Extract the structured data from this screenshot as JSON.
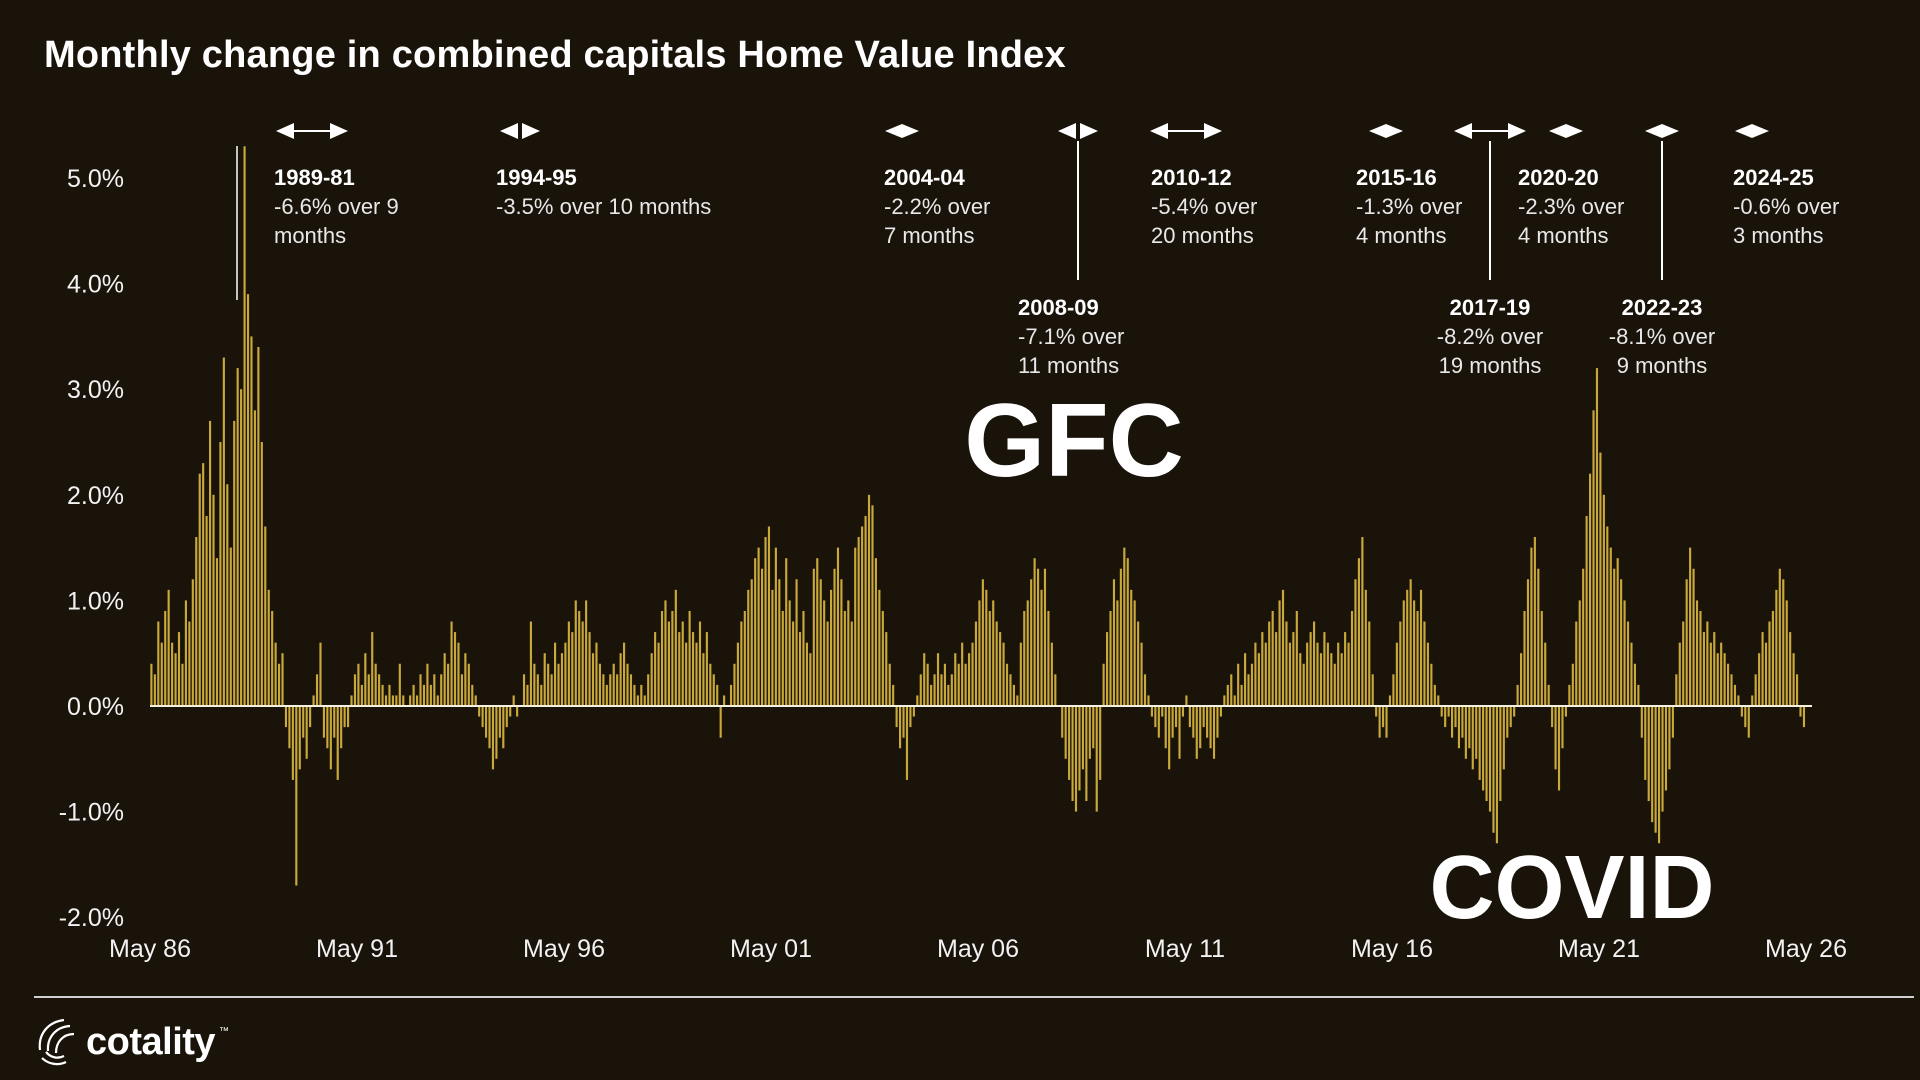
{
  "chart_data": {
    "type": "bar",
    "title": "Monthly change in combined capitals Home Value Index",
    "ylim": [
      -2.0,
      5.5
    ],
    "y_ticks": [
      "5.0%",
      "4.0%",
      "3.0%",
      "2.0%",
      "1.0%",
      "0.0%",
      "-1.0%",
      "-2.0%"
    ],
    "y_tick_values": [
      5.0,
      4.0,
      3.0,
      2.0,
      1.0,
      0.0,
      -1.0,
      -2.0
    ],
    "x_ticks": [
      "May 86",
      "May 91",
      "May 96",
      "May 01",
      "May 06",
      "May 11",
      "May 16",
      "May 21",
      "May 26"
    ],
    "x_range": [
      "May 86",
      "May 26"
    ],
    "grid": false,
    "series_color": "#c9a93a",
    "series": [
      {
        "values_by_year": [
          {
            "year": "1986-87",
            "values": [
              0.4,
              0.3,
              0.8,
              0.6,
              0.9,
              1.1,
              0.6,
              0.5,
              0.7,
              0.4,
              1.0,
              0.8
            ]
          },
          {
            "year": "1987-88",
            "values": [
              1.2,
              1.6,
              2.2,
              2.3,
              1.8,
              2.7,
              2.0,
              1.4,
              2.5,
              3.3,
              2.1,
              1.5
            ]
          },
          {
            "year": "1988-89",
            "values": [
              2.7,
              3.2,
              3.0,
              5.3,
              3.9,
              3.5,
              2.8,
              3.4,
              2.5,
              1.7,
              1.1,
              0.9
            ]
          },
          {
            "year": "1989-90",
            "values": [
              0.6,
              0.4,
              0.5,
              -0.2,
              -0.4,
              -0.7,
              -1.7,
              -0.6,
              -0.3,
              -0.5,
              -0.2,
              0.1
            ]
          },
          {
            "year": "1990-91",
            "values": [
              0.3,
              0.6,
              -0.3,
              -0.4,
              -0.6,
              -0.3,
              -0.7,
              -0.4,
              -0.2,
              -0.2,
              0.1,
              0.3
            ]
          },
          {
            "year": "1991-92",
            "values": [
              0.4,
              0.2,
              0.5,
              0.3,
              0.7,
              0.4,
              0.3,
              0.2,
              0.1,
              0.2,
              0.1,
              0.1
            ]
          },
          {
            "year": "1992-93",
            "values": [
              0.4,
              0.1,
              0.0,
              0.1,
              0.2,
              0.1,
              0.3,
              0.2,
              0.4,
              0.2,
              0.3,
              0.1
            ]
          },
          {
            "year": "1993-94",
            "values": [
              0.3,
              0.5,
              0.4,
              0.8,
              0.7,
              0.6,
              0.3,
              0.5,
              0.4,
              0.2,
              0.1,
              -0.1
            ]
          },
          {
            "year": "1994-95",
            "values": [
              -0.2,
              -0.3,
              -0.4,
              -0.6,
              -0.5,
              -0.3,
              -0.4,
              -0.2,
              -0.1,
              0.1,
              -0.1,
              0.0
            ]
          },
          {
            "year": "1995-96",
            "values": [
              0.3,
              0.2,
              0.8,
              0.4,
              0.3,
              0.2,
              0.5,
              0.4,
              0.3,
              0.6,
              0.4,
              0.5
            ]
          },
          {
            "year": "1996-97",
            "values": [
              0.6,
              0.8,
              0.7,
              1.0,
              0.9,
              0.8,
              1.0,
              0.7,
              0.5,
              0.6,
              0.4,
              0.3
            ]
          },
          {
            "year": "1997-98",
            "values": [
              0.2,
              0.3,
              0.4,
              0.3,
              0.5,
              0.6,
              0.4,
              0.3,
              0.2,
              0.1,
              0.2,
              0.1
            ]
          },
          {
            "year": "1998-99",
            "values": [
              0.3,
              0.5,
              0.7,
              0.6,
              0.9,
              1.0,
              0.8,
              0.9,
              1.1,
              0.7,
              0.8,
              0.6
            ]
          },
          {
            "year": "1999-00",
            "values": [
              0.9,
              0.7,
              0.6,
              0.8,
              0.5,
              0.7,
              0.4,
              0.3,
              0.2,
              -0.3,
              0.1,
              0.0
            ]
          },
          {
            "year": "2000-01",
            "values": [
              0.2,
              0.4,
              0.6,
              0.8,
              0.9,
              1.1,
              1.2,
              1.4,
              1.5,
              1.3,
              1.6,
              1.7
            ]
          },
          {
            "year": "2001-02",
            "values": [
              1.1,
              1.5,
              1.2,
              0.9,
              1.4,
              1.0,
              0.8,
              1.2,
              0.7,
              0.9,
              0.6,
              0.5
            ]
          },
          {
            "year": "2002-03",
            "values": [
              1.3,
              1.4,
              1.2,
              1.0,
              0.8,
              1.1,
              1.3,
              1.5,
              1.2,
              0.9,
              1.0,
              0.8
            ]
          },
          {
            "year": "2003-04",
            "values": [
              1.5,
              1.6,
              1.7,
              1.8,
              2.0,
              1.9,
              1.4,
              1.1,
              0.9,
              0.7,
              0.4,
              0.2
            ]
          },
          {
            "year": "2004-05",
            "values": [
              -0.2,
              -0.4,
              -0.3,
              -0.7,
              -0.2,
              -0.1,
              0.1,
              0.3,
              0.5,
              0.4,
              0.2,
              0.3
            ]
          },
          {
            "year": "2005-06",
            "values": [
              0.5,
              0.3,
              0.4,
              0.2,
              0.3,
              0.5,
              0.4,
              0.6,
              0.4,
              0.5,
              0.6,
              0.8
            ]
          },
          {
            "year": "2006-07",
            "values": [
              1.0,
              1.2,
              1.1,
              0.9,
              1.0,
              0.8,
              0.7,
              0.6,
              0.4,
              0.3,
              0.2,
              0.1
            ]
          },
          {
            "year": "2007-08",
            "values": [
              0.6,
              0.9,
              1.0,
              1.2,
              1.4,
              1.3,
              1.1,
              1.3,
              0.9,
              0.6,
              0.3,
              0.0
            ]
          },
          {
            "year": "2008-09",
            "values": [
              -0.3,
              -0.5,
              -0.7,
              -0.9,
              -1.0,
              -0.8,
              -0.6,
              -0.9,
              -0.5,
              -0.4,
              -1.0,
              -0.7
            ]
          },
          {
            "year": "2009-10",
            "values": [
              0.4,
              0.7,
              0.9,
              1.2,
              1.0,
              1.3,
              1.5,
              1.4,
              1.1,
              1.0,
              0.8,
              0.6
            ]
          },
          {
            "year": "2010-11",
            "values": [
              0.3,
              0.1,
              -0.1,
              -0.2,
              -0.3,
              -0.1,
              -0.4,
              -0.6,
              -0.3,
              -0.2,
              -0.5,
              -0.1
            ]
          },
          {
            "year": "2011-12",
            "values": [
              0.1,
              -0.2,
              -0.3,
              -0.5,
              -0.4,
              -0.2,
              -0.3,
              -0.4,
              -0.5,
              -0.3,
              -0.1,
              0.1
            ]
          },
          {
            "year": "2012-13",
            "values": [
              0.2,
              0.3,
              0.1,
              0.4,
              0.2,
              0.5,
              0.3,
              0.4,
              0.6,
              0.5,
              0.7,
              0.6
            ]
          },
          {
            "year": "2013-14",
            "values": [
              0.8,
              0.9,
              0.7,
              1.0,
              1.1,
              0.8,
              0.6,
              0.7,
              0.9,
              0.5,
              0.4,
              0.6
            ]
          },
          {
            "year": "2014-15",
            "values": [
              0.7,
              0.8,
              0.6,
              0.5,
              0.7,
              0.6,
              0.5,
              0.4,
              0.6,
              0.5,
              0.7,
              0.6
            ]
          },
          {
            "year": "2015-16",
            "values": [
              0.9,
              1.2,
              1.4,
              1.6,
              1.1,
              0.8,
              0.3,
              -0.1,
              -0.3,
              -0.2,
              -0.3,
              0.1
            ]
          },
          {
            "year": "2016-17",
            "values": [
              0.3,
              0.6,
              0.8,
              1.0,
              1.1,
              1.2,
              1.0,
              0.9,
              1.1,
              0.8,
              0.6,
              0.4
            ]
          },
          {
            "year": "2017-18",
            "values": [
              0.2,
              0.1,
              -0.1,
              -0.2,
              -0.1,
              -0.3,
              -0.2,
              -0.4,
              -0.3,
              -0.5,
              -0.4,
              -0.6
            ]
          },
          {
            "year": "2018-19",
            "values": [
              -0.5,
              -0.7,
              -0.8,
              -0.9,
              -1.0,
              -1.2,
              -1.3,
              -0.9,
              -0.6,
              -0.3,
              -0.2,
              -0.1
            ]
          },
          {
            "year": "2019-20",
            "values": [
              0.2,
              0.5,
              0.9,
              1.2,
              1.5,
              1.6,
              1.3,
              0.9,
              0.6,
              0.2,
              -0.2,
              -0.6
            ]
          },
          {
            "year": "2020-21",
            "values": [
              -0.8,
              -0.4,
              -0.1,
              0.2,
              0.4,
              0.8,
              1.0,
              1.3,
              1.8,
              2.2,
              2.8,
              3.2
            ]
          },
          {
            "year": "2021-22",
            "values": [
              2.4,
              2.0,
              1.7,
              1.5,
              1.3,
              1.4,
              1.2,
              1.0,
              0.8,
              0.6,
              0.4,
              0.2
            ]
          },
          {
            "year": "2022-23",
            "values": [
              -0.3,
              -0.7,
              -0.9,
              -1.1,
              -1.2,
              -1.3,
              -1.0,
              -0.8,
              -0.6,
              -0.3,
              0.3,
              0.6
            ]
          },
          {
            "year": "2023-24",
            "values": [
              0.8,
              1.2,
              1.5,
              1.3,
              1.0,
              0.9,
              0.7,
              0.8,
              0.6,
              0.7,
              0.5,
              0.6
            ]
          },
          {
            "year": "2024-25",
            "values": [
              0.5,
              0.4,
              0.3,
              0.2,
              0.1,
              -0.1,
              -0.2,
              -0.3,
              0.1,
              0.3,
              0.5,
              0.7
            ]
          },
          {
            "year": "2025-26",
            "values": [
              0.6,
              0.8,
              0.9,
              1.1,
              1.3,
              1.2,
              1.0,
              0.7,
              0.5,
              0.3,
              -0.1,
              -0.2
            ]
          }
        ]
      }
    ],
    "annotations": [
      {
        "period": "1989-81",
        "text1": "-6.6% over 9",
        "text2": "months",
        "arrow": "wide",
        "leader": "none"
      },
      {
        "period": "1994-95",
        "text1": "-3.5% over 10 months",
        "text2": "",
        "arrow": "narrow",
        "leader": "none"
      },
      {
        "period": "2004-04",
        "text1": "-2.2% over",
        "text2": "7 months",
        "arrow": "diamond",
        "leader": "none"
      },
      {
        "period": "2008-09",
        "text1": "-7.1% over",
        "text2": "11 months",
        "arrow": "narrow",
        "leader": "line"
      },
      {
        "period": "2010-12",
        "text1": "-5.4% over",
        "text2": "20 months",
        "arrow": "wide",
        "leader": "none"
      },
      {
        "period": "2015-16",
        "text1": "-1.3% over",
        "text2": "4 months",
        "arrow": "diamond",
        "leader": "none"
      },
      {
        "period": "2017-19",
        "text1": "-8.2% over",
        "text2": "19 months",
        "arrow": "wide",
        "leader": "line"
      },
      {
        "period": "2020-20",
        "text1": "-2.3% over",
        "text2": "4 months",
        "arrow": "diamond",
        "leader": "none"
      },
      {
        "period": "2022-23",
        "text1": "-8.1% over",
        "text2": "9 months",
        "arrow": "diamond",
        "leader": "line"
      },
      {
        "period": "2024-25",
        "text1": "-0.6% over",
        "text2": "3 months",
        "arrow": "diamond",
        "leader": "none"
      }
    ],
    "overlay_labels": [
      {
        "text": "GFC",
        "near": "May 08"
      },
      {
        "text": "COVID",
        "near": "May 20"
      }
    ]
  },
  "brand": {
    "name": "cotality",
    "trademark": "™",
    "logo_icon": "cotality-logo-icon"
  }
}
